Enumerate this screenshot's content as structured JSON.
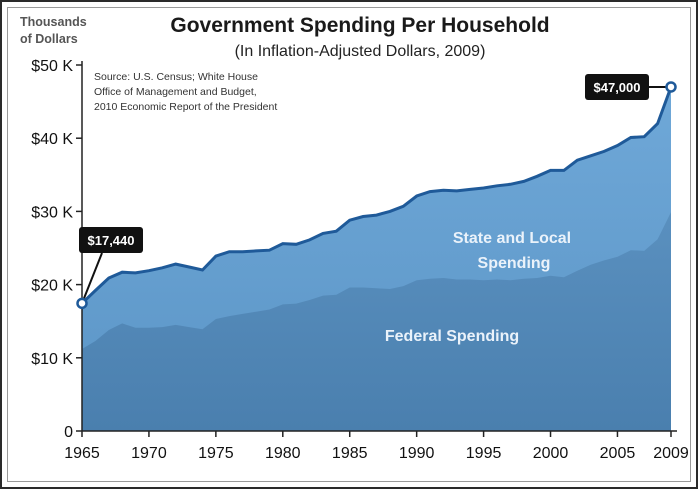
{
  "chart_data": {
    "type": "area",
    "title": "Government Spending Per Household",
    "subtitle": "(In Inflation-Adjusted Dollars, 2009)",
    "ylabel": "Thousands of Dollars",
    "ylabel_lines": [
      "Thousands",
      "of Dollars"
    ],
    "source_lines": [
      "Source: U.S. Census; White House",
      "Office of Management and Budget,",
      "2010 Economic Report of the President"
    ],
    "xlim": [
      1965,
      2009
    ],
    "ylim": [
      0,
      50000
    ],
    "x_ticks": [
      1965,
      1970,
      1975,
      1980,
      1985,
      1990,
      1995,
      2000,
      2005,
      2009
    ],
    "x_tick_labels": [
      "1965",
      "1970",
      "1975",
      "1980",
      "1985",
      "1990",
      "1995",
      "2000",
      "2005",
      "2009"
    ],
    "y_ticks": [
      0,
      10000,
      20000,
      30000,
      40000,
      50000
    ],
    "y_tick_labels": [
      "0",
      "$10 K",
      "$20 K",
      "$30 K",
      "$40 K",
      "$50 K"
    ],
    "grid": false,
    "x": [
      1965,
      1966,
      1967,
      1968,
      1969,
      1970,
      1971,
      1972,
      1973,
      1974,
      1975,
      1976,
      1977,
      1978,
      1979,
      1980,
      1981,
      1982,
      1983,
      1984,
      1985,
      1986,
      1987,
      1988,
      1989,
      1990,
      1991,
      1992,
      1993,
      1994,
      1995,
      1996,
      1997,
      1998,
      1999,
      2000,
      2001,
      2002,
      2003,
      2004,
      2005,
      2006,
      2007,
      2008,
      2009
    ],
    "series": [
      {
        "name": "Federal Spending",
        "color": "#4e86b6",
        "values": [
          11200,
          12300,
          13800,
          14700,
          14100,
          14100,
          14200,
          14500,
          14200,
          13900,
          15300,
          15700,
          16000,
          16300,
          16600,
          17300,
          17400,
          17900,
          18500,
          18600,
          19600,
          19600,
          19500,
          19400,
          19800,
          20600,
          20800,
          20900,
          20700,
          20700,
          20600,
          20700,
          20600,
          20800,
          20900,
          21200,
          21000,
          21900,
          22700,
          23300,
          23800,
          24700,
          24600,
          26200,
          29900
        ]
      },
      {
        "name": "State and Local Spending",
        "color": "#6fa5d3",
        "values": [
          17440,
          19200,
          20900,
          21700,
          21600,
          21900,
          22300,
          22800,
          22400,
          22000,
          23900,
          24500,
          24500,
          24600,
          24700,
          25600,
          25500,
          26100,
          27000,
          27300,
          28800,
          29300,
          29500,
          30000,
          30700,
          32100,
          32700,
          32900,
          32800,
          33000,
          33200,
          33500,
          33700,
          34100,
          34800,
          35600,
          35600,
          37000,
          37600,
          38200,
          39000,
          40100,
          40200,
          42000,
          47000
        ]
      }
    ],
    "series_label_lines": {
      "federal": [
        "Federal Spending"
      ],
      "state_local": [
        "State and Local",
        "Spending"
      ]
    },
    "annotations": [
      {
        "x": 1965,
        "y": 17440,
        "text": "$17,440"
      },
      {
        "x": 2009,
        "y": 47000,
        "text": "$47,000"
      }
    ]
  }
}
